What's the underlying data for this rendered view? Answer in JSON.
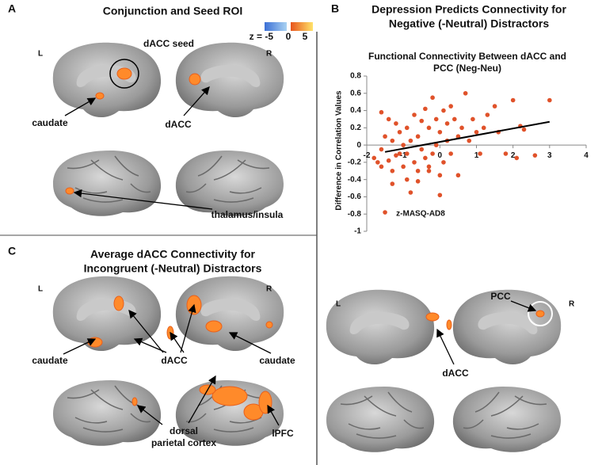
{
  "panel_a": {
    "letter": "A",
    "title": "Conjunction and Seed ROI",
    "colorbar_labels": [
      "z = -5",
      "0",
      "5"
    ],
    "hemisphere_labels": [
      "L",
      "R"
    ],
    "labels": [
      "dACC seed",
      "caudate",
      "dACC",
      "thalamus/insula"
    ]
  },
  "panel_b": {
    "letter": "B",
    "title_lines": [
      "Depression Predicts Connectivity for",
      "Negative (-Neutral) Distractors"
    ],
    "hemisphere_labels": [
      "L",
      "R"
    ],
    "labels": [
      "PCC",
      "dACC"
    ]
  },
  "panel_c": {
    "letter": "C",
    "title_lines": [
      "Average dACC Connectivity for",
      "Incongruent (-Neutral) Distractors"
    ],
    "hemisphere_labels": [
      "L",
      "R"
    ],
    "labels": [
      "caudate",
      "dACC",
      "caudate",
      "dorsal",
      "parietal cortex",
      "lPFC"
    ]
  },
  "chart_data": {
    "type": "scatter",
    "title_lines": [
      "Functional Connectivity Between dACC and",
      "PCC (Neg-Neu)"
    ],
    "x_label": "z-MASQ-AD8",
    "y_label": "Difference in Correlation Values",
    "x": [
      -1.8,
      -1.7,
      -1.6,
      -1.6,
      -1.5,
      -1.5,
      -1.4,
      -1.4,
      -1.3,
      -1.3,
      -1.2,
      -1.2,
      -1.1,
      -1.1,
      -1.0,
      -1.0,
      -0.9,
      -0.9,
      -0.8,
      -0.8,
      -0.7,
      -0.7,
      -0.6,
      -0.6,
      -0.5,
      -0.5,
      -0.4,
      -0.4,
      -0.3,
      -0.3,
      -0.2,
      -0.2,
      -0.1,
      -0.1,
      0.0,
      0.0,
      0.1,
      0.1,
      0.2,
      0.2,
      0.3,
      0.3,
      0.4,
      0.5,
      0.5,
      0.6,
      0.7,
      0.8,
      0.9,
      1.0,
      1.1,
      1.2,
      1.3,
      1.5,
      1.6,
      1.8,
      2.0,
      2.1,
      2.2,
      2.3,
      2.6,
      3.0,
      -1.3,
      -0.9,
      -0.3,
      0.0,
      -1.6,
      -0.6
    ],
    "values": [
      -0.15,
      -0.2,
      0.38,
      -0.05,
      -0.78,
      0.1,
      -0.18,
      0.3,
      0.05,
      -0.3,
      0.25,
      -0.12,
      -0.1,
      0.15,
      -0.25,
      0.0,
      0.2,
      -0.4,
      -0.55,
      0.05,
      0.35,
      -0.2,
      0.1,
      -0.3,
      0.28,
      -0.05,
      -0.15,
      0.42,
      0.2,
      -0.3,
      0.55,
      -0.1,
      0.3,
      0.0,
      0.15,
      -0.58,
      0.4,
      -0.2,
      0.05,
      0.25,
      0.45,
      -0.1,
      0.3,
      0.1,
      -0.35,
      0.2,
      0.6,
      0.05,
      0.3,
      0.15,
      -0.1,
      0.2,
      0.35,
      0.45,
      0.15,
      -0.1,
      0.52,
      -0.15,
      0.22,
      0.18,
      -0.12,
      0.52,
      -0.45,
      -0.1,
      -0.25,
      -0.35,
      -0.25,
      -0.42
    ],
    "color": "#e0522a",
    "trend_line": {
      "x": [
        -1.5,
        3
      ],
      "values": [
        -0.08,
        0.27
      ],
      "color": "#000000"
    },
    "xlim": [
      -2,
      4
    ],
    "xticks": [
      -2,
      -1,
      0,
      1,
      2,
      3,
      4
    ],
    "ylim": [
      -1,
      0.8
    ],
    "yticks": [
      0.8,
      0.6,
      0.4,
      0.2,
      0,
      -0.2,
      -0.4,
      -0.6,
      -0.8,
      -1
    ]
  }
}
